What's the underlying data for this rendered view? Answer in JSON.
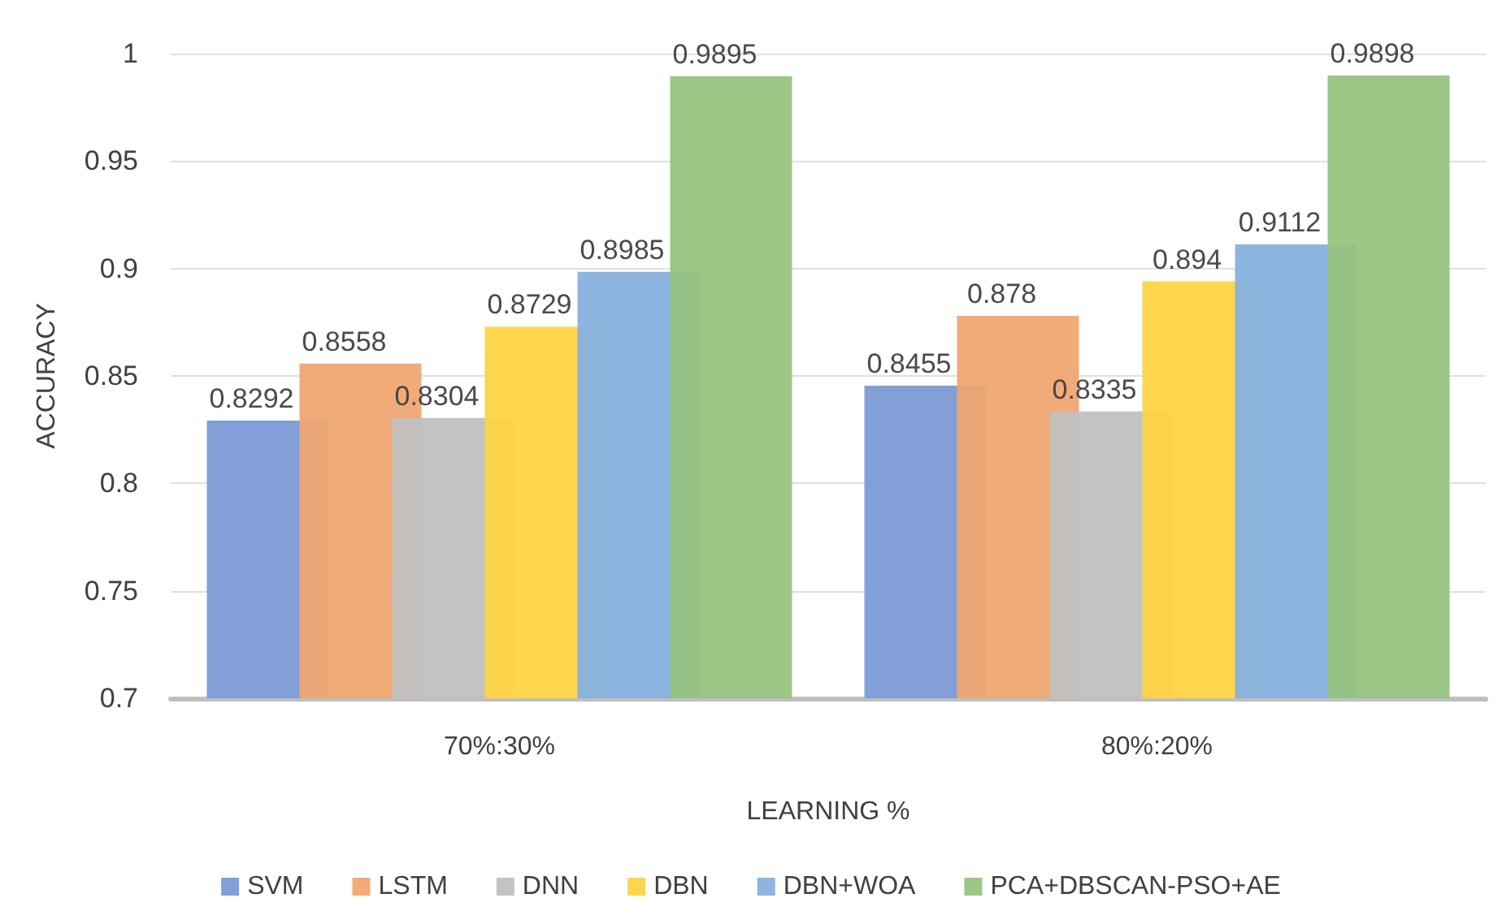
{
  "chart_data": {
    "type": "bar",
    "xlabel": "LEARNING %",
    "ylabel": "ACCURACY",
    "categories": [
      "70%:30%",
      "80%:20%"
    ],
    "series": [
      {
        "name": "SVM",
        "color": "#7b9bd5",
        "values": [
          0.8292,
          0.8455
        ]
      },
      {
        "name": "LSTM",
        "color": "#f0a672",
        "values": [
          0.8558,
          0.878
        ]
      },
      {
        "name": "DNN",
        "color": "#c0c0c0",
        "values": [
          0.8304,
          0.8335
        ]
      },
      {
        "name": "DBN",
        "color": "#fdd443",
        "values": [
          0.8729,
          0.894
        ]
      },
      {
        "name": "DBN+WOA",
        "color": "#86b1e0",
        "values": [
          0.8985,
          0.9112
        ]
      },
      {
        "name": "PCA+DBSCAN-PSO+AE",
        "color": "#97c47f",
        "values": [
          0.9895,
          0.9898
        ]
      }
    ],
    "ylim": [
      0.7,
      1
    ],
    "yticks": [
      0.7,
      0.75,
      0.8,
      0.85,
      0.9,
      0.95,
      1
    ],
    "grid": "y",
    "legend": "bottom",
    "data_labels": true
  }
}
